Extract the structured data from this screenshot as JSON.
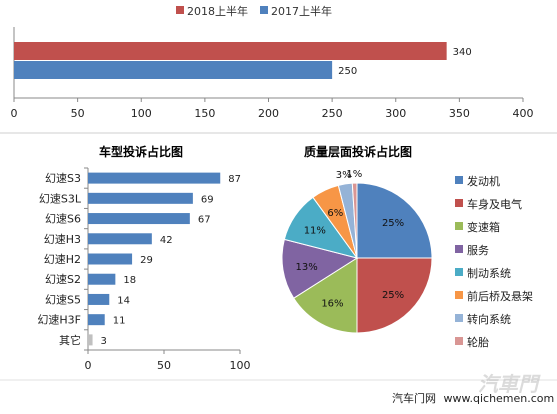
{
  "chart_data": [
    {
      "type": "bar",
      "orientation": "horizontal",
      "title": "",
      "categories": [
        ""
      ],
      "series": [
        {
          "name": "2018上半年",
          "values": [
            340
          ],
          "color": "#c0504d"
        },
        {
          "name": "2017上半年",
          "values": [
            250
          ],
          "color": "#4f81bd"
        }
      ],
      "xlim": [
        0,
        400
      ],
      "xticks": [
        0,
        50,
        100,
        150,
        200,
        250,
        300,
        350,
        400
      ],
      "legend": "top-center",
      "grid": false
    },
    {
      "type": "bar",
      "orientation": "horizontal",
      "title": "车型投诉占比图",
      "categories": [
        "幻速S3",
        "幻速S3L",
        "幻速S6",
        "幻速H3",
        "幻速H2",
        "幻速S2",
        "幻速S5",
        "幻速H3F",
        "其它"
      ],
      "values": [
        87,
        69,
        67,
        42,
        29,
        18,
        14,
        11,
        3
      ],
      "colors": [
        "#4f81bd",
        "#4f81bd",
        "#4f81bd",
        "#4f81bd",
        "#4f81bd",
        "#4f81bd",
        "#4f81bd",
        "#4f81bd",
        "#c0c0c0"
      ],
      "xlim": [
        0,
        100
      ],
      "xticks": [
        0,
        50,
        100
      ],
      "grid": false
    },
    {
      "type": "pie",
      "title": "质量层面投诉占比图",
      "categories": [
        "发动机",
        "车身及电气",
        "变速箱",
        "服务",
        "制动系统",
        "前后桥及悬架",
        "转向系统",
        "轮胎"
      ],
      "values": [
        25,
        25,
        16,
        13,
        11,
        6,
        3,
        1
      ],
      "value_labels": [
        "25%",
        "25%",
        "16%",
        "13%",
        "11%",
        "6%",
        "3%",
        "1%"
      ],
      "colors": [
        "#4f81bd",
        "#c0504d",
        "#9bbb59",
        "#8064a2",
        "#4bacc6",
        "#f79646",
        "#95b3d7",
        "#d99694"
      ],
      "legend": "right"
    }
  ],
  "watermark": {
    "brand": "汽车门网",
    "url": "www.qichemen.com",
    "logo_text": "汽車門"
  }
}
